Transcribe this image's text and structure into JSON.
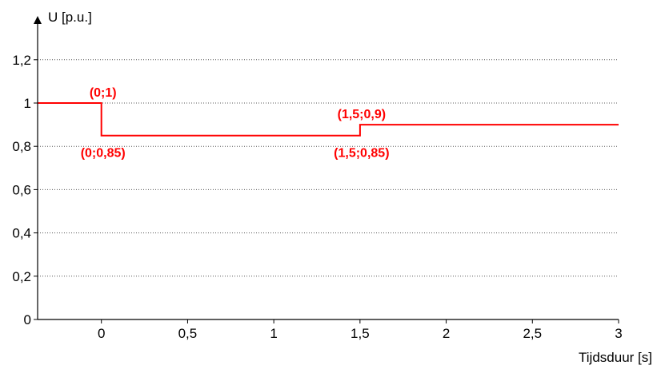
{
  "chart_data": {
    "type": "line",
    "ylabel": "U [p.u.]",
    "xlabel": "Tijdsduur [s]",
    "xlim": [
      -0.37,
      3.0
    ],
    "ylim": [
      0,
      1.3
    ],
    "xticks": [
      {
        "value": 0,
        "label": "0"
      },
      {
        "value": 0.5,
        "label": "0,5"
      },
      {
        "value": 1,
        "label": "1"
      },
      {
        "value": 1.5,
        "label": "1,5"
      },
      {
        "value": 2,
        "label": "2"
      },
      {
        "value": 2.5,
        "label": "2,5"
      },
      {
        "value": 3,
        "label": "3"
      }
    ],
    "yticks": [
      {
        "value": 0,
        "label": "0"
      },
      {
        "value": 0.2,
        "label": "0,2"
      },
      {
        "value": 0.4,
        "label": "0,4"
      },
      {
        "value": 0.6,
        "label": "0,6"
      },
      {
        "value": 0.8,
        "label": "0,8"
      },
      {
        "value": 1,
        "label": "1"
      },
      {
        "value": 1.2,
        "label": "1,2"
      }
    ],
    "grid": "horizontal-dotted",
    "series": [
      {
        "color": "#ff0000",
        "x": [
          -0.37,
          0,
          0,
          1.5,
          1.5,
          3.0
        ],
        "y": [
          1,
          1,
          0.85,
          0.85,
          0.9,
          0.9
        ]
      }
    ],
    "annotations": [
      {
        "text": "(0;1)",
        "x": 0,
        "y": 1,
        "anchor": "above"
      },
      {
        "text": "(0;0,85)",
        "x": 0,
        "y": 0.85,
        "anchor": "below"
      },
      {
        "text": "(1,5;0,9)",
        "x": 1.5,
        "y": 0.9,
        "anchor": "above"
      },
      {
        "text": "(1,5;0,85)",
        "x": 1.5,
        "y": 0.85,
        "anchor": "below"
      }
    ]
  }
}
